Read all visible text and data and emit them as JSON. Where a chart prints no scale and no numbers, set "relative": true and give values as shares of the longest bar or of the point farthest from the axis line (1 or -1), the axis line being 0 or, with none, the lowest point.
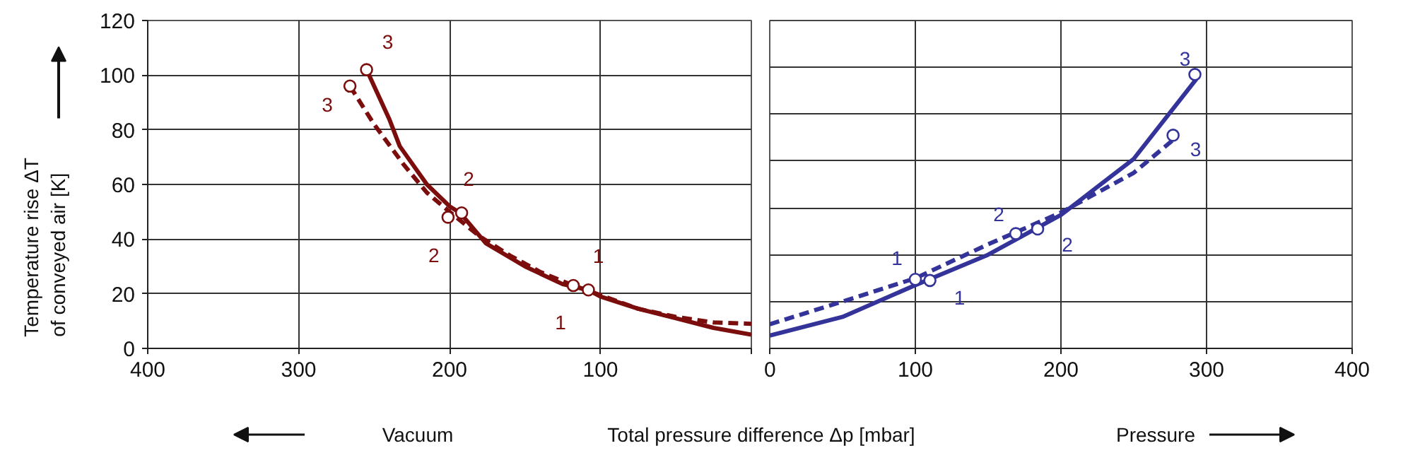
{
  "chart_data": [
    {
      "type": "line",
      "ylabel": "Temperature rise ΔT\nof conveyed air [K]",
      "xlabel": "Total pressure difference Δp [mbar]",
      "xlim": [
        400,
        0
      ],
      "ylim": [
        0,
        120
      ],
      "xticks": [
        400,
        300,
        200,
        100,
        {
          "value": 0,
          "label": null
        }
      ],
      "yticks": [
        0,
        20,
        40,
        60,
        80,
        100,
        120
      ],
      "grid": true,
      "series": [
        {
          "line_style": "solid",
          "color": "#7b0d0d",
          "x": [
            255,
            240,
            233,
            215,
            200,
            193,
            176,
            150,
            125,
            108,
            100,
            75,
            50,
            25,
            0
          ],
          "values": [
            102,
            84,
            74,
            60,
            52,
            49.6,
            38.5,
            30,
            23.5,
            21.4,
            19,
            14.5,
            11,
            7.5,
            5
          ]
        },
        {
          "line_style": "dashed",
          "color": "#7b0d0d",
          "x": [
            266,
            250,
            230,
            215,
            200,
            180,
            160,
            140,
            118,
            100,
            75,
            50,
            25,
            0
          ],
          "values": [
            96,
            82,
            67,
            57,
            50,
            41,
            34,
            28,
            23,
            19.5,
            14.5,
            11.5,
            9.5,
            9
          ]
        },
        {
          "type": "scatter",
          "marker": "circle",
          "color": "#7b0d0d",
          "x": [
            255,
            192,
            108
          ],
          "values": [
            102,
            49.6,
            21.4
          ]
        },
        {
          "type": "scatter",
          "marker": "circle",
          "color": "#7b0d0d",
          "x": [
            266,
            201,
            118
          ],
          "values": [
            96,
            48,
            23
          ]
        }
      ],
      "annotations": [
        "3",
        "2",
        "1",
        "3",
        "2",
        "1",
        "Vacuum"
      ]
    },
    {
      "type": "line",
      "relative": true,
      "xlim": [
        0,
        400
      ],
      "xticks": [
        0,
        100,
        200,
        300,
        400
      ],
      "grid": true,
      "series": [
        {
          "line_style": "solid",
          "color": "#33339a",
          "x": [
            0,
            50,
            100,
            150,
            200,
            250,
            293
          ],
          "values": [
            0.047,
            0.115,
            0.231,
            0.342,
            0.487,
            0.692,
            0.983
          ]
        },
        {
          "line_style": "dashed",
          "color": "#33339a",
          "x": [
            0,
            50,
            100,
            150,
            200,
            250,
            277
          ],
          "values": [
            0.088,
            0.171,
            0.256,
            0.38,
            0.496,
            0.641,
            0.761
          ]
        },
        {
          "type": "scatter",
          "marker": "circle",
          "color": "#33339a",
          "x": [
            110,
            184,
            292
          ],
          "values": [
            0.248,
            0.436,
            1
          ]
        },
        {
          "type": "scatter",
          "marker": "circle",
          "color": "#33339a",
          "x": [
            100,
            169,
            277
          ],
          "values": [
            0.252,
            0.419,
            0.778
          ]
        }
      ],
      "annotations": [
        "1",
        "2",
        "3",
        "1",
        "2",
        "3",
        "Pressure"
      ]
    }
  ]
}
